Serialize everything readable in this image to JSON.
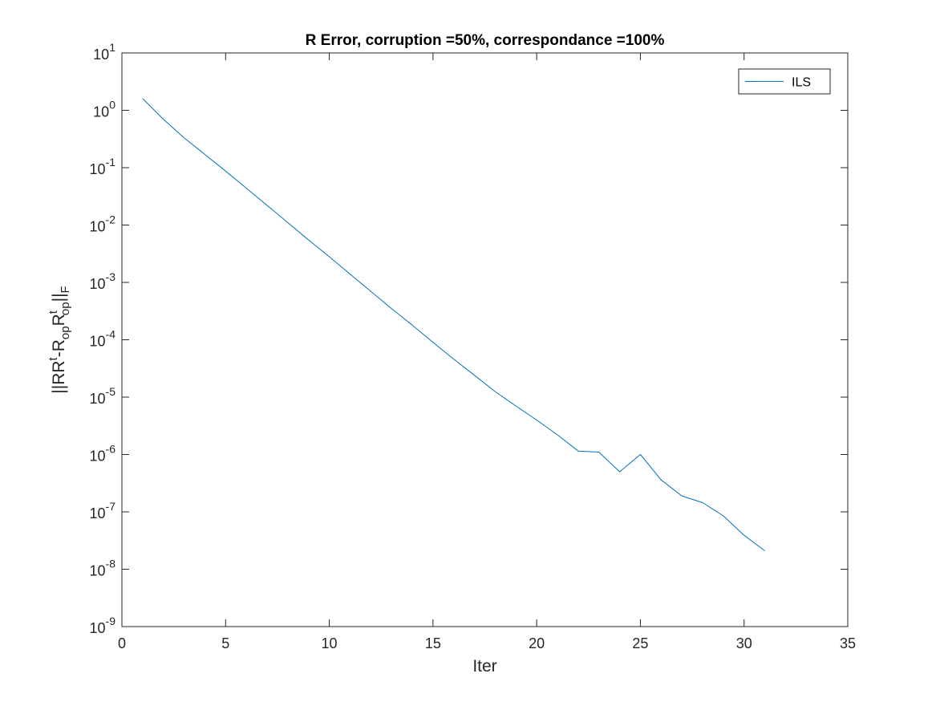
{
  "chart_data": {
    "type": "line",
    "title": "R Error, corruption =50%, correspondance =100%",
    "xlabel": "Iter",
    "ylabel": {
      "parts": [
        "||RR",
        "t",
        "-R",
        "op",
        "R",
        "t",
        "op",
        "||",
        "F"
      ]
    },
    "xlim": [
      0,
      35
    ],
    "ylim": [
      1e-09,
      10
    ],
    "yscale": "log",
    "xticks": [
      0,
      5,
      10,
      15,
      20,
      25,
      30,
      35
    ],
    "xtick_labels": [
      "0",
      "5",
      "10",
      "15",
      "20",
      "25",
      "30",
      "35"
    ],
    "yticks_exponents": [
      1,
      0,
      -1,
      -2,
      -3,
      -4,
      -5,
      -6,
      -7,
      -8,
      -9
    ],
    "ytick_base": "10",
    "ytick_exponent_labels": [
      "1",
      "0",
      "-1",
      "-2",
      "-3",
      "-4",
      "-5",
      "-6",
      "-7",
      "-8",
      "-9"
    ],
    "grid": false,
    "legend_position": "top-right",
    "series": [
      {
        "name": "ILS",
        "color": "#0072bd",
        "x": [
          1,
          2,
          3,
          4,
          5,
          6,
          7,
          8,
          9,
          10,
          11,
          12,
          13,
          14,
          15,
          16,
          17,
          18,
          19,
          20,
          21,
          22,
          23,
          24,
          25,
          26,
          27,
          28,
          29,
          30,
          31
        ],
        "y": [
          1.6,
          0.7,
          0.33,
          0.17,
          0.087,
          0.044,
          0.022,
          0.011,
          0.0055,
          0.0028,
          0.0014,
          0.0007,
          0.00035,
          0.00018,
          9e-05,
          4.6e-05,
          2.4e-05,
          1.25e-05,
          7e-06,
          4e-06,
          2.2e-06,
          1.15e-06,
          1.1e-06,
          5e-07,
          1e-06,
          3.6e-07,
          1.9e-07,
          1.45e-07,
          8.5e-08,
          3.9e-08,
          2.1e-08
        ]
      }
    ]
  }
}
